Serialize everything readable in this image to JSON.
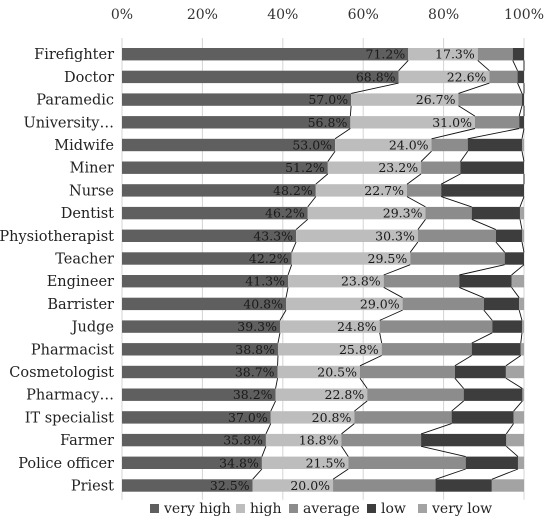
{
  "chart_data": {
    "type": "bar",
    "stacked": "percent",
    "orientation": "horizontal",
    "title": "",
    "xlabel": "",
    "ylabel": "",
    "xlim": [
      0,
      100
    ],
    "x_ticks": [
      "0%",
      "20%",
      "40%",
      "60%",
      "80%",
      "100%"
    ],
    "x_axis_position": "top",
    "grid": true,
    "legend_position": "bottom",
    "connector_lines": true,
    "categories": [
      "Firefighter",
      "Doctor",
      "Paramedic",
      "University…",
      "Midwife",
      "Miner",
      "Nurse",
      "Dentist",
      "Physiotherapist",
      "Teacher",
      "Engineer",
      "Barrister",
      "Judge",
      "Pharmacist",
      "Cosmetologist",
      "Pharmacy…",
      "IT specialist",
      "Farmer",
      "Police officer",
      "Priest"
    ],
    "series": [
      {
        "name": "very high",
        "color": "#5f5f5f",
        "values": [
          71.2,
          68.8,
          57.0,
          56.8,
          53.0,
          51.2,
          48.2,
          46.2,
          43.3,
          42.2,
          41.3,
          40.8,
          39.3,
          38.8,
          38.7,
          38.2,
          37.0,
          35.8,
          34.8,
          32.5
        ],
        "labels": [
          "71.2%",
          "68.8%",
          "57.0%",
          "56.8%",
          "53.0%",
          "51.2%",
          "48.2%",
          "46.2%",
          "43.3%",
          "42.2%",
          "41.3%",
          "40.8%",
          "39.3%",
          "38.8%",
          "38.7%",
          "38.2%",
          "37.0%",
          "35.8%",
          "34.8%",
          "32.5%"
        ]
      },
      {
        "name": "high",
        "color": "#bdbdbd",
        "values": [
          17.3,
          22.6,
          26.7,
          31.0,
          24.0,
          23.2,
          22.7,
          29.3,
          30.3,
          29.5,
          23.8,
          29.0,
          24.8,
          25.8,
          20.5,
          22.8,
          20.8,
          18.8,
          21.5,
          20.0
        ],
        "labels": [
          "17.3%",
          "22.6%",
          "26.7%",
          "31.0%",
          "24.0%",
          "23.2%",
          "22.7%",
          "29.3%",
          "30.3%",
          "29.5%",
          "23.8%",
          "29.0%",
          "24.8%",
          "25.8%",
          "20.5%",
          "22.8%",
          "20.8%",
          "18.8%",
          "21.5%",
          "20.0%"
        ]
      },
      {
        "name": "average",
        "color": "#8c8c8c",
        "values": [
          8.7,
          7.0,
          15.8,
          11.0,
          9.0,
          9.8,
          8.5,
          11.5,
          19.4,
          23.5,
          18.8,
          20.2,
          28.0,
          22.4,
          23.6,
          24.0,
          24.2,
          19.8,
          29.2,
          25.5
        ]
      },
      {
        "name": "low",
        "color": "#3d3d3d",
        "values": [
          2.8,
          1.6,
          0.5,
          1.2,
          13.5,
          15.8,
          20.6,
          12.0,
          6.5,
          4.8,
          13.0,
          8.8,
          7.4,
          12.2,
          12.7,
          14.6,
          15.4,
          21.2,
          13.0,
          14.0
        ]
      },
      {
        "name": "very low",
        "color": "#a3a3a3",
        "values": [
          0.0,
          0.0,
          0.0,
          0.0,
          0.5,
          0.0,
          0.0,
          1.0,
          0.5,
          0.0,
          3.1,
          1.2,
          0.5,
          0.8,
          4.5,
          0.4,
          2.6,
          4.4,
          1.5,
          8.0
        ]
      }
    ]
  }
}
